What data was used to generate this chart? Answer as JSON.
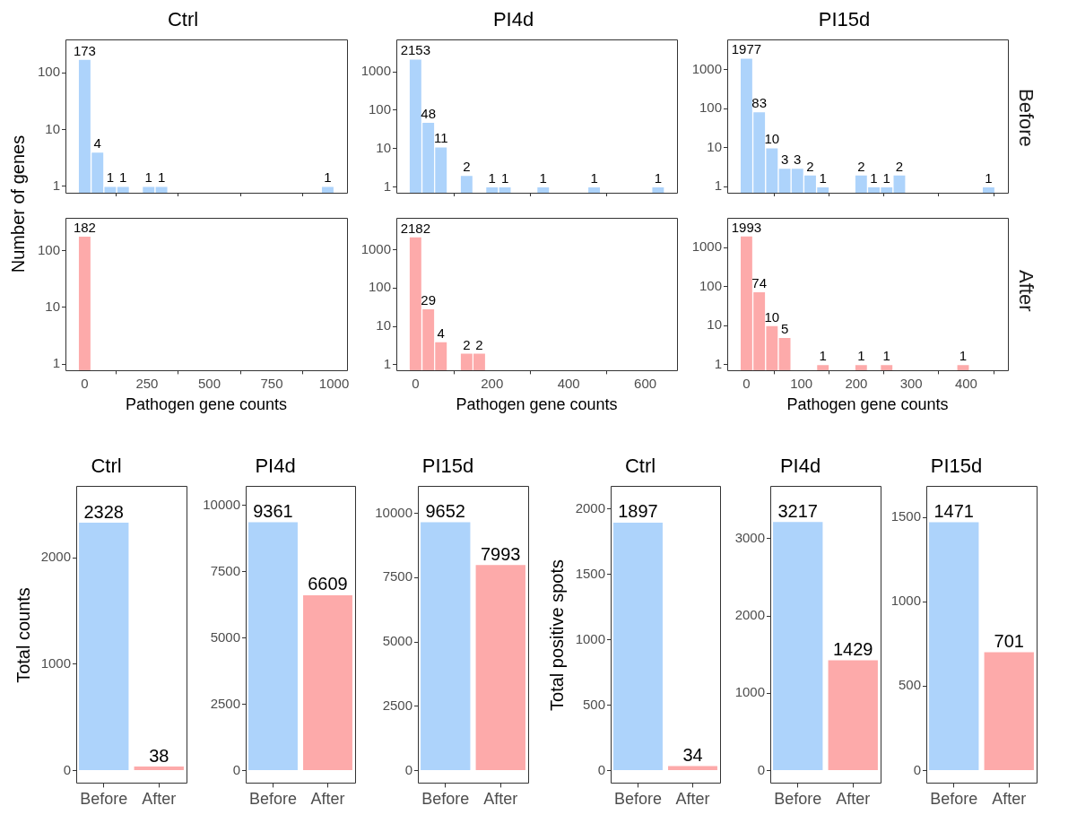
{
  "chart_data": [
    {
      "type": "histogram",
      "title": "Ctrl",
      "ylabel": "Number of genes",
      "bins": [
        -26,
        26,
        77,
        128,
        180,
        231,
        282,
        334,
        385,
        436,
        487,
        539,
        590,
        641,
        693,
        744,
        795,
        847,
        898,
        949,
        1000
      ],
      "values": [
        173,
        4,
        1,
        1,
        null,
        1,
        1,
        null,
        null,
        null,
        null,
        null,
        null,
        null,
        null,
        null,
        null,
        null,
        null,
        1
      ],
      "color": "#add3fb",
      "log": "y",
      "xlim": [
        -77,
        1052
      ],
      "xticks": [
        0,
        250,
        500,
        750,
        1000
      ],
      "ylim": [
        0.77,
        380
      ],
      "yticks": [
        1,
        10,
        100
      ],
      "tick_labels": "y",
      "data_labels": true,
      "grid": false,
      "legend": false
    },
    {
      "type": "histogram",
      "title": "PI4d",
      "bins": [
        -17,
        17,
        50,
        83,
        117,
        150,
        183,
        217,
        250,
        283,
        317,
        350,
        383,
        417,
        450,
        483,
        517,
        550,
        583,
        617,
        650
      ],
      "values": [
        2153,
        48,
        11,
        null,
        2,
        null,
        1,
        1,
        null,
        null,
        1,
        null,
        null,
        null,
        1,
        null,
        null,
        null,
        null,
        1
      ],
      "color": "#add3fb",
      "log": "y",
      "xlim": [
        -50,
        683
      ],
      "xticks": [
        0,
        200,
        400,
        600
      ],
      "ylim": [
        0.7,
        6800
      ],
      "yticks": [
        1,
        10,
        100,
        1000
      ],
      "tick_labels": "y",
      "data_labels": true,
      "grid": false,
      "legend": false
    },
    {
      "type": "histogram",
      "title": "PI15d",
      "annotations": [
        "Before"
      ],
      "bins": [
        -11.6,
        11.6,
        34.8,
        58,
        81.2,
        104.4,
        127.6,
        150.8,
        174,
        197.2,
        220.4,
        243.6,
        266.8,
        290,
        313.2,
        336.4,
        359.6,
        382.8,
        406,
        429.2,
        452.4
      ],
      "values": [
        1977,
        83,
        10,
        3,
        3,
        2,
        1,
        null,
        null,
        2,
        1,
        1,
        2,
        null,
        null,
        null,
        null,
        null,
        null,
        1
      ],
      "color": "#add3fb",
      "log": "y",
      "xlim": [
        -35,
        476
      ],
      "xticks": [
        0,
        100,
        200,
        300,
        400
      ],
      "ylim": [
        0.71,
        5800
      ],
      "yticks": [
        1,
        10,
        100,
        1000
      ],
      "tick_labels": "y",
      "data_labels": true,
      "grid": false,
      "legend": false
    },
    {
      "type": "histogram",
      "xlabel": "Pathogen gene counts",
      "bins": [
        -26,
        26,
        77,
        128,
        180,
        231,
        282,
        334,
        385,
        436,
        487,
        539,
        590,
        641,
        693,
        744,
        795,
        847,
        898,
        949,
        1000
      ],
      "values": [
        182,
        null,
        null,
        null,
        null,
        null,
        null,
        null,
        null,
        null,
        null,
        null,
        null,
        null,
        null,
        null,
        null,
        null,
        null,
        null
      ],
      "color": "#fdaaaa",
      "log": "y",
      "xlim": [
        -77,
        1052
      ],
      "xticks": [
        0,
        250,
        500,
        750,
        1000
      ],
      "ylim": [
        0.77,
        380
      ],
      "yticks": [
        1,
        10,
        100
      ],
      "data_labels": true,
      "grid": false,
      "legend": false
    },
    {
      "type": "histogram",
      "xlabel": "Pathogen gene counts",
      "bins": [
        -17,
        17,
        50,
        83,
        117,
        150,
        183,
        217,
        250,
        283,
        317,
        350,
        383,
        417,
        450,
        483,
        517,
        550,
        583,
        617,
        650
      ],
      "values": [
        2182,
        29,
        4,
        null,
        2,
        2,
        null,
        null,
        null,
        null,
        null,
        null,
        null,
        null,
        null,
        null,
        null,
        null,
        null,
        null
      ],
      "color": "#fdaaaa",
      "log": "y",
      "xlim": [
        -50,
        683
      ],
      "xticks": [
        0,
        200,
        400,
        600
      ],
      "ylim": [
        0.7,
        6800
      ],
      "yticks": [
        1,
        10,
        100,
        1000
      ],
      "data_labels": true,
      "grid": false,
      "legend": false
    },
    {
      "type": "histogram",
      "xlabel": "Pathogen gene counts",
      "annotations": [
        "After"
      ],
      "bins": [
        -11.6,
        11.6,
        34.8,
        58,
        81.2,
        104.4,
        127.6,
        150.8,
        174,
        197.2,
        220.4,
        243.6,
        266.8,
        290,
        313.2,
        336.4,
        359.6,
        382.8,
        406,
        429.2,
        452.4
      ],
      "values": [
        1993,
        74,
        10,
        5,
        null,
        null,
        1,
        null,
        null,
        1,
        null,
        1,
        null,
        null,
        null,
        null,
        null,
        1,
        null,
        null
      ],
      "color": "#fdaaaa",
      "log": "y",
      "xlim": [
        -35,
        476
      ],
      "xticks": [
        0,
        100,
        200,
        300,
        400
      ],
      "ylim": [
        0.71,
        5800
      ],
      "yticks": [
        1,
        10,
        100,
        1000
      ],
      "data_labels": true,
      "grid": false,
      "legend": false
    },
    {
      "type": "bar",
      "title": "Ctrl",
      "ylabel": "Total counts",
      "categories": [
        "Before",
        "After"
      ],
      "values": [
        2328,
        38
      ],
      "colors": [
        "#add3fb",
        "#fdaaaa"
      ],
      "ylim": [
        -116,
        2670
      ],
      "yticks": [
        0,
        1000,
        2000
      ],
      "data_labels": true,
      "grid": false,
      "legend": false
    },
    {
      "type": "bar",
      "title": "PI4d",
      "categories": [
        "Before",
        "After"
      ],
      "values": [
        9361,
        6609
      ],
      "colors": [
        "#add3fb",
        "#fdaaaa"
      ],
      "ylim": [
        -468,
        10714
      ],
      "yticks": [
        0,
        2500,
        5000,
        7500,
        10000
      ],
      "data_labels": true,
      "grid": false,
      "legend": false
    },
    {
      "type": "bar",
      "title": "PI15d",
      "categories": [
        "Before",
        "After"
      ],
      "values": [
        9652,
        7993
      ],
      "colors": [
        "#add3fb",
        "#fdaaaa"
      ],
      "ylim": [
        -483,
        11050
      ],
      "yticks": [
        0,
        2500,
        5000,
        7500,
        10000
      ],
      "data_labels": true,
      "grid": false,
      "legend": false
    },
    {
      "type": "bar",
      "title": "Ctrl",
      "ylabel": "Total positive spots",
      "categories": [
        "Before",
        "After"
      ],
      "values": [
        1897,
        34
      ],
      "colors": [
        "#add3fb",
        "#fdaaaa"
      ],
      "ylim": [
        -95,
        2175
      ],
      "yticks": [
        0,
        500,
        1000,
        1500,
        2000
      ],
      "data_labels": true,
      "grid": false,
      "legend": false
    },
    {
      "type": "bar",
      "title": "PI4d",
      "categories": [
        "Before",
        "After"
      ],
      "values": [
        3217,
        1429
      ],
      "colors": [
        "#add3fb",
        "#fdaaaa"
      ],
      "ylim": [
        -161,
        3680
      ],
      "yticks": [
        0,
        1000,
        2000,
        3000
      ],
      "data_labels": true,
      "grid": false,
      "legend": false
    },
    {
      "type": "bar",
      "title": "PI15d",
      "categories": [
        "Before",
        "After"
      ],
      "values": [
        1471,
        701
      ],
      "colors": [
        "#add3fb",
        "#fdaaaa"
      ],
      "ylim": [
        -74,
        1684
      ],
      "yticks": [
        0,
        500,
        1000,
        1500
      ],
      "data_labels": true,
      "grid": false,
      "legend": false
    }
  ]
}
